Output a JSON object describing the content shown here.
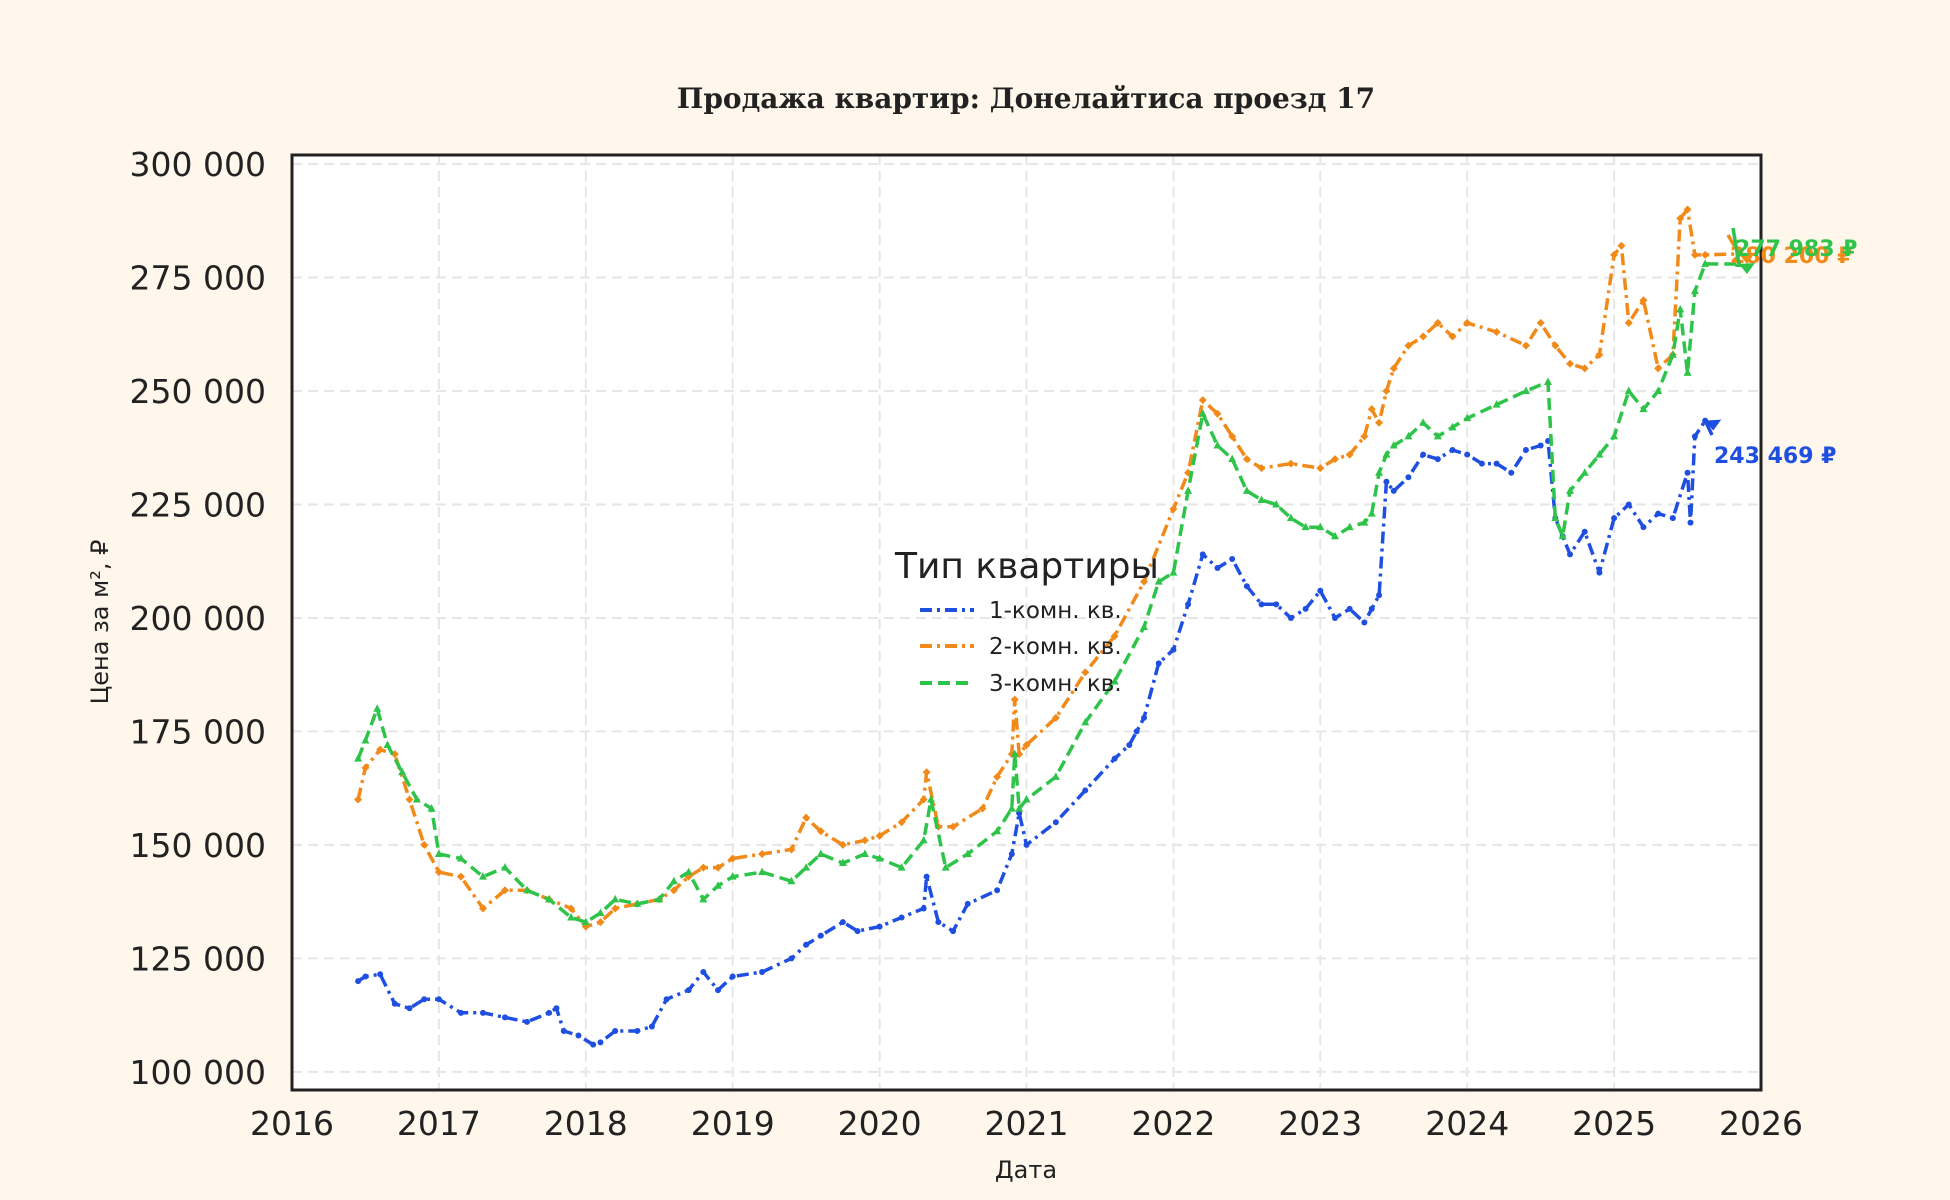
{
  "chart_data": {
    "type": "line",
    "title": "Продажа квартир: Донелайтиса проезд 17",
    "xlabel": "Дата",
    "ylabel": "Цена за м², ₽",
    "xlim": [
      2016.0,
      2026.0
    ],
    "ylim": [
      96000,
      302000
    ],
    "x_ticks": [
      "2016",
      "2017",
      "2018",
      "2019",
      "2020",
      "2021",
      "2022",
      "2023",
      "2024",
      "2025",
      "2026"
    ],
    "y_ticks": [
      100000,
      125000,
      150000,
      175000,
      200000,
      225000,
      250000,
      275000,
      300000
    ],
    "y_tick_labels": [
      "100 000",
      "125 000",
      "150 000",
      "175 000",
      "200 000",
      "225 000",
      "250 000",
      "275 000",
      "300 000"
    ],
    "grid": true,
    "legend": {
      "title": "Тип квартиры",
      "position": "center"
    },
    "series": [
      {
        "name": "1-комн. кв.",
        "color": "#1f4fe0",
        "x": [
          2016.45,
          2016.5,
          2016.6,
          2016.7,
          2016.8,
          2016.9,
          2017.0,
          2017.15,
          2017.3,
          2017.45,
          2017.6,
          2017.75,
          2017.8,
          2017.85,
          2017.95,
          2018.05,
          2018.1,
          2018.2,
          2018.35,
          2018.45,
          2018.55,
          2018.7,
          2018.8,
          2018.9,
          2019.0,
          2019.2,
          2019.4,
          2019.5,
          2019.6,
          2019.75,
          2019.85,
          2020.0,
          2020.15,
          2020.3,
          2020.32,
          2020.4,
          2020.5,
          2020.6,
          2020.8,
          2020.9,
          2020.95,
          2021.0,
          2021.2,
          2021.4,
          2021.6,
          2021.7,
          2021.75,
          2021.8,
          2021.9,
          2022.0,
          2022.1,
          2022.2,
          2022.3,
          2022.4,
          2022.5,
          2022.6,
          2022.7,
          2022.8,
          2022.9,
          2023.0,
          2023.1,
          2023.2,
          2023.3,
          2023.35,
          2023.4,
          2023.45,
          2023.5,
          2023.6,
          2023.7,
          2023.8,
          2023.9,
          2024.0,
          2024.1,
          2024.2,
          2024.3,
          2024.4,
          2024.5,
          2024.55,
          2024.6,
          2024.65,
          2024.7,
          2024.8,
          2024.9,
          2025.0,
          2025.1,
          2025.2,
          2025.3,
          2025.4,
          2025.5,
          2025.52,
          2025.55,
          2025.62
        ],
        "values": [
          120000,
          121000,
          121500,
          115000,
          114000,
          116000,
          116000,
          113000,
          113000,
          112000,
          111000,
          113000,
          114000,
          109000,
          108000,
          106000,
          106500,
          109000,
          109000,
          110000,
          116000,
          118000,
          122000,
          118000,
          121000,
          122000,
          125000,
          128000,
          130000,
          133000,
          131000,
          132000,
          134000,
          136000,
          143000,
          133000,
          131000,
          137000,
          140000,
          148000,
          157000,
          150000,
          155000,
          162000,
          169000,
          172000,
          175000,
          178000,
          190000,
          193000,
          203000,
          214000,
          211000,
          213000,
          207000,
          203000,
          203000,
          200000,
          202000,
          206000,
          200000,
          202000,
          199000,
          202000,
          205000,
          230000,
          228000,
          231000,
          236000,
          235000,
          237000,
          236000,
          234000,
          234000,
          232000,
          237000,
          238000,
          239000,
          222000,
          218000,
          214000,
          219000,
          210000,
          222000,
          225000,
          220000,
          223000,
          222000,
          232000,
          221000,
          240000,
          243469
        ]
      },
      {
        "name": "2-комн. кв.",
        "color": "#f28a1a",
        "x": [
          2016.45,
          2016.5,
          2016.6,
          2016.7,
          2016.8,
          2016.9,
          2017.0,
          2017.15,
          2017.3,
          2017.45,
          2017.6,
          2017.75,
          2017.9,
          2018.0,
          2018.1,
          2018.2,
          2018.35,
          2018.5,
          2018.6,
          2018.7,
          2018.8,
          2018.9,
          2019.0,
          2019.2,
          2019.4,
          2019.5,
          2019.6,
          2019.75,
          2019.9,
          2020.0,
          2020.15,
          2020.3,
          2020.32,
          2020.4,
          2020.5,
          2020.7,
          2020.8,
          2020.9,
          2020.92,
          2020.95,
          2021.0,
          2021.2,
          2021.4,
          2021.6,
          2021.8,
          2022.0,
          2022.1,
          2022.2,
          2022.3,
          2022.4,
          2022.5,
          2022.6,
          2022.8,
          2023.0,
          2023.1,
          2023.2,
          2023.3,
          2023.35,
          2023.4,
          2023.45,
          2023.5,
          2023.6,
          2023.7,
          2023.8,
          2023.9,
          2024.0,
          2024.2,
          2024.4,
          2024.5,
          2024.6,
          2024.7,
          2024.8,
          2024.9,
          2025.0,
          2025.05,
          2025.1,
          2025.2,
          2025.3,
          2025.4,
          2025.45,
          2025.5,
          2025.55,
          2025.62,
          2025.85
        ],
        "values": [
          160000,
          167000,
          171000,
          170000,
          160000,
          150000,
          144000,
          143000,
          136000,
          140000,
          140000,
          138000,
          136000,
          132000,
          133000,
          136000,
          137000,
          138000,
          140000,
          143000,
          145000,
          145000,
          147000,
          148000,
          149000,
          156000,
          153000,
          150000,
          151000,
          152000,
          155000,
          160000,
          166000,
          154000,
          154000,
          158000,
          165000,
          170000,
          182000,
          170000,
          172000,
          178000,
          188000,
          196000,
          208000,
          224000,
          232000,
          248000,
          245000,
          240000,
          235000,
          233000,
          234000,
          233000,
          235000,
          236000,
          240000,
          246000,
          243000,
          250000,
          255000,
          260000,
          262000,
          265000,
          262000,
          265000,
          263000,
          260000,
          265000,
          260000,
          256000,
          255000,
          258000,
          280000,
          282000,
          265000,
          270000,
          255000,
          258000,
          288000,
          290000,
          280000,
          280000,
          280200
        ]
      },
      {
        "name": "3-комн. кв.",
        "color": "#2ec44a",
        "x": [
          2016.45,
          2016.5,
          2016.58,
          2016.65,
          2016.75,
          2016.85,
          2016.95,
          2017.0,
          2017.15,
          2017.3,
          2017.45,
          2017.6,
          2017.75,
          2017.9,
          2018.0,
          2018.1,
          2018.2,
          2018.35,
          2018.5,
          2018.6,
          2018.7,
          2018.8,
          2018.9,
          2019.0,
          2019.2,
          2019.4,
          2019.5,
          2019.6,
          2019.75,
          2019.9,
          2020.0,
          2020.15,
          2020.3,
          2020.35,
          2020.45,
          2020.6,
          2020.8,
          2020.9,
          2020.92,
          2020.95,
          2021.0,
          2021.2,
          2021.4,
          2021.6,
          2021.8,
          2021.9,
          2022.0,
          2022.1,
          2022.2,
          2022.3,
          2022.4,
          2022.5,
          2022.6,
          2022.7,
          2022.8,
          2022.9,
          2023.0,
          2023.1,
          2023.2,
          2023.3,
          2023.35,
          2023.4,
          2023.45,
          2023.5,
          2023.6,
          2023.7,
          2023.8,
          2023.9,
          2024.0,
          2024.2,
          2024.4,
          2024.55,
          2024.6,
          2024.65,
          2024.7,
          2024.8,
          2024.9,
          2025.0,
          2025.1,
          2025.2,
          2025.3,
          2025.4,
          2025.45,
          2025.5,
          2025.55,
          2025.62,
          2025.85
        ],
        "values": [
          169000,
          173000,
          180000,
          172000,
          166000,
          160000,
          158000,
          148000,
          147000,
          143000,
          145000,
          140000,
          138000,
          134000,
          133000,
          135000,
          138000,
          137000,
          138000,
          142000,
          144000,
          138000,
          141000,
          143000,
          144000,
          142000,
          145000,
          148000,
          146000,
          148000,
          147000,
          145000,
          151000,
          160000,
          145000,
          148000,
          153000,
          158000,
          170000,
          158000,
          160000,
          165000,
          177000,
          186000,
          198000,
          208000,
          210000,
          228000,
          245000,
          238000,
          235000,
          228000,
          226000,
          225000,
          222000,
          220000,
          220000,
          218000,
          220000,
          221000,
          223000,
          232000,
          236000,
          238000,
          240000,
          243000,
          240000,
          242000,
          244000,
          247000,
          250000,
          252000,
          222000,
          218000,
          228000,
          232000,
          236000,
          240000,
          250000,
          246000,
          250000,
          258000,
          268000,
          254000,
          272000,
          278000,
          277983
        ]
      }
    ],
    "end_labels": [
      {
        "series": "1-комн. кв.",
        "text": "243 469 ₽",
        "color": "#1f4fe0"
      },
      {
        "series": "2-комн. кв.",
        "text": "280 200 ₽",
        "color": "#f28a1a"
      },
      {
        "series": "3-комн. кв.",
        "text": "277 983 ₽",
        "color": "#2ec44a"
      }
    ]
  }
}
